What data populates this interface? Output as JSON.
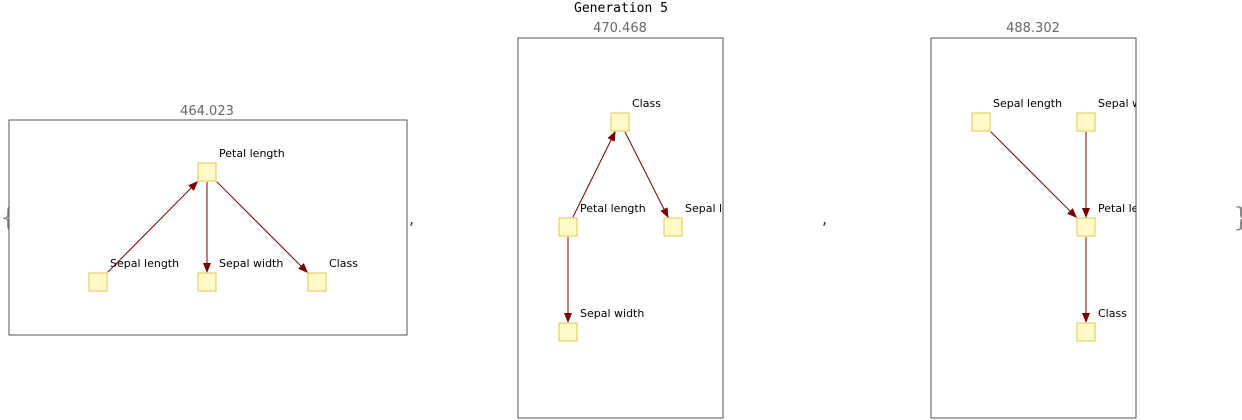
{
  "title": "Generation 5",
  "brace_open": "{",
  "brace_close": "}",
  "separator": ",",
  "colors": {
    "edge": "#7a0000",
    "node_fill": "#fffac8",
    "node_stroke": "#e0c84a",
    "frame": "#555555",
    "score_text": "#666666"
  },
  "graphs": [
    {
      "score": "464.023",
      "nodes": [
        {
          "id": "pl",
          "label": "Petal length"
        },
        {
          "id": "sl",
          "label": "Sepal length"
        },
        {
          "id": "sw",
          "label": "Sepal width"
        },
        {
          "id": "cl",
          "label": "Class"
        }
      ],
      "edges": [
        {
          "from": "sl",
          "to": "pl"
        },
        {
          "from": "pl",
          "to": "sw"
        },
        {
          "from": "pl",
          "to": "cl"
        }
      ]
    },
    {
      "score": "470.468",
      "nodes": [
        {
          "id": "cl",
          "label": "Class"
        },
        {
          "id": "pl",
          "label": "Petal length"
        },
        {
          "id": "sl",
          "label": "Sepal length"
        },
        {
          "id": "sw",
          "label": "Sepal width"
        }
      ],
      "edges": [
        {
          "from": "pl",
          "to": "cl"
        },
        {
          "from": "cl",
          "to": "sl"
        },
        {
          "from": "pl",
          "to": "sw"
        }
      ]
    },
    {
      "score": "488.302",
      "nodes": [
        {
          "id": "sl",
          "label": "Sepal length"
        },
        {
          "id": "sw",
          "label": "Sepal width"
        },
        {
          "id": "pl",
          "label": "Petal length"
        },
        {
          "id": "cl",
          "label": "Class"
        }
      ],
      "edges": [
        {
          "from": "sl",
          "to": "pl"
        },
        {
          "from": "sw",
          "to": "pl"
        },
        {
          "from": "pl",
          "to": "cl"
        }
      ]
    }
  ]
}
